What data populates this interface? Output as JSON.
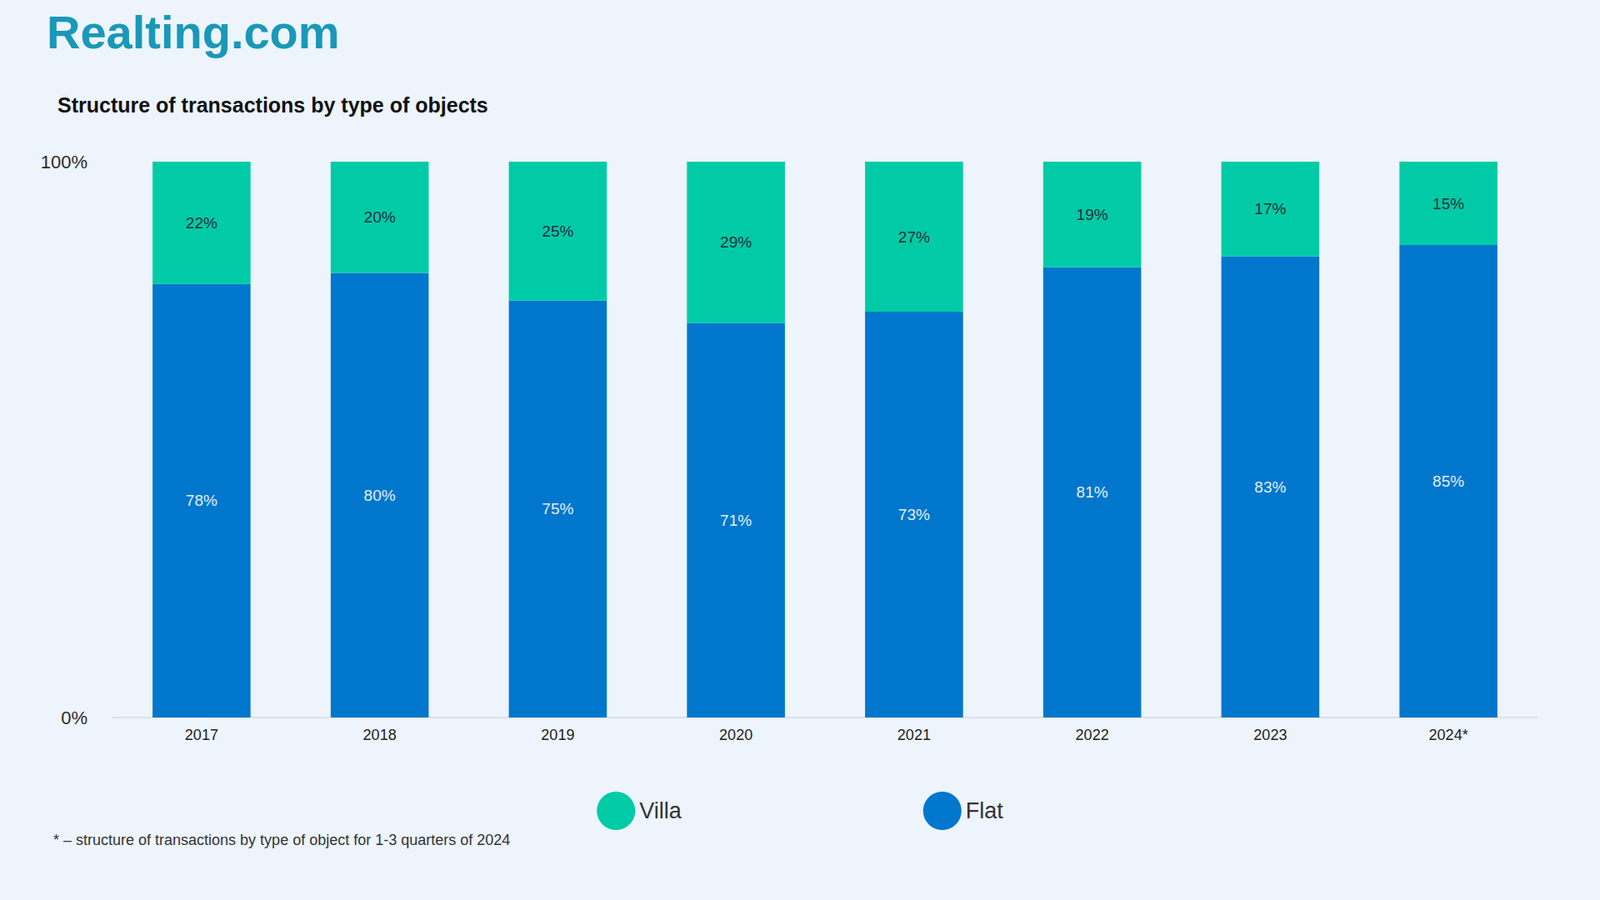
{
  "chart_data": {
    "type": "bar",
    "source": "Realting.com",
    "title": "Structure of transactions by type of objects",
    "footnote": "* – structure of transactions by type of object for 1-3 quarters of 2024",
    "categories": [
      "2017",
      "2018",
      "2019",
      "2020",
      "2021",
      "2022",
      "2023",
      "2024*"
    ],
    "series": [
      {
        "name": "Villa",
        "color": "#00cba6",
        "values": [
          22,
          20,
          25,
          29,
          27,
          19,
          17,
          15
        ],
        "value_labels": [
          "22%",
          "20%",
          "25%",
          "29%",
          "27%",
          "19%",
          "17%",
          "15%"
        ]
      },
      {
        "name": "Flat",
        "color": "#0077cc",
        "values": [
          78,
          80,
          75,
          71,
          73,
          81,
          83,
          85
        ],
        "value_labels": [
          "78%",
          "80%",
          "75%",
          "71%",
          "73%",
          "81%",
          "83%",
          "85%"
        ]
      }
    ],
    "ylim": [
      0,
      100
    ],
    "yticks": [
      {
        "value": 0,
        "label": "0%"
      },
      {
        "value": 100,
        "label": "100%"
      }
    ],
    "stacked": true,
    "data_labels": true,
    "grid": false,
    "legend": "bottom"
  }
}
